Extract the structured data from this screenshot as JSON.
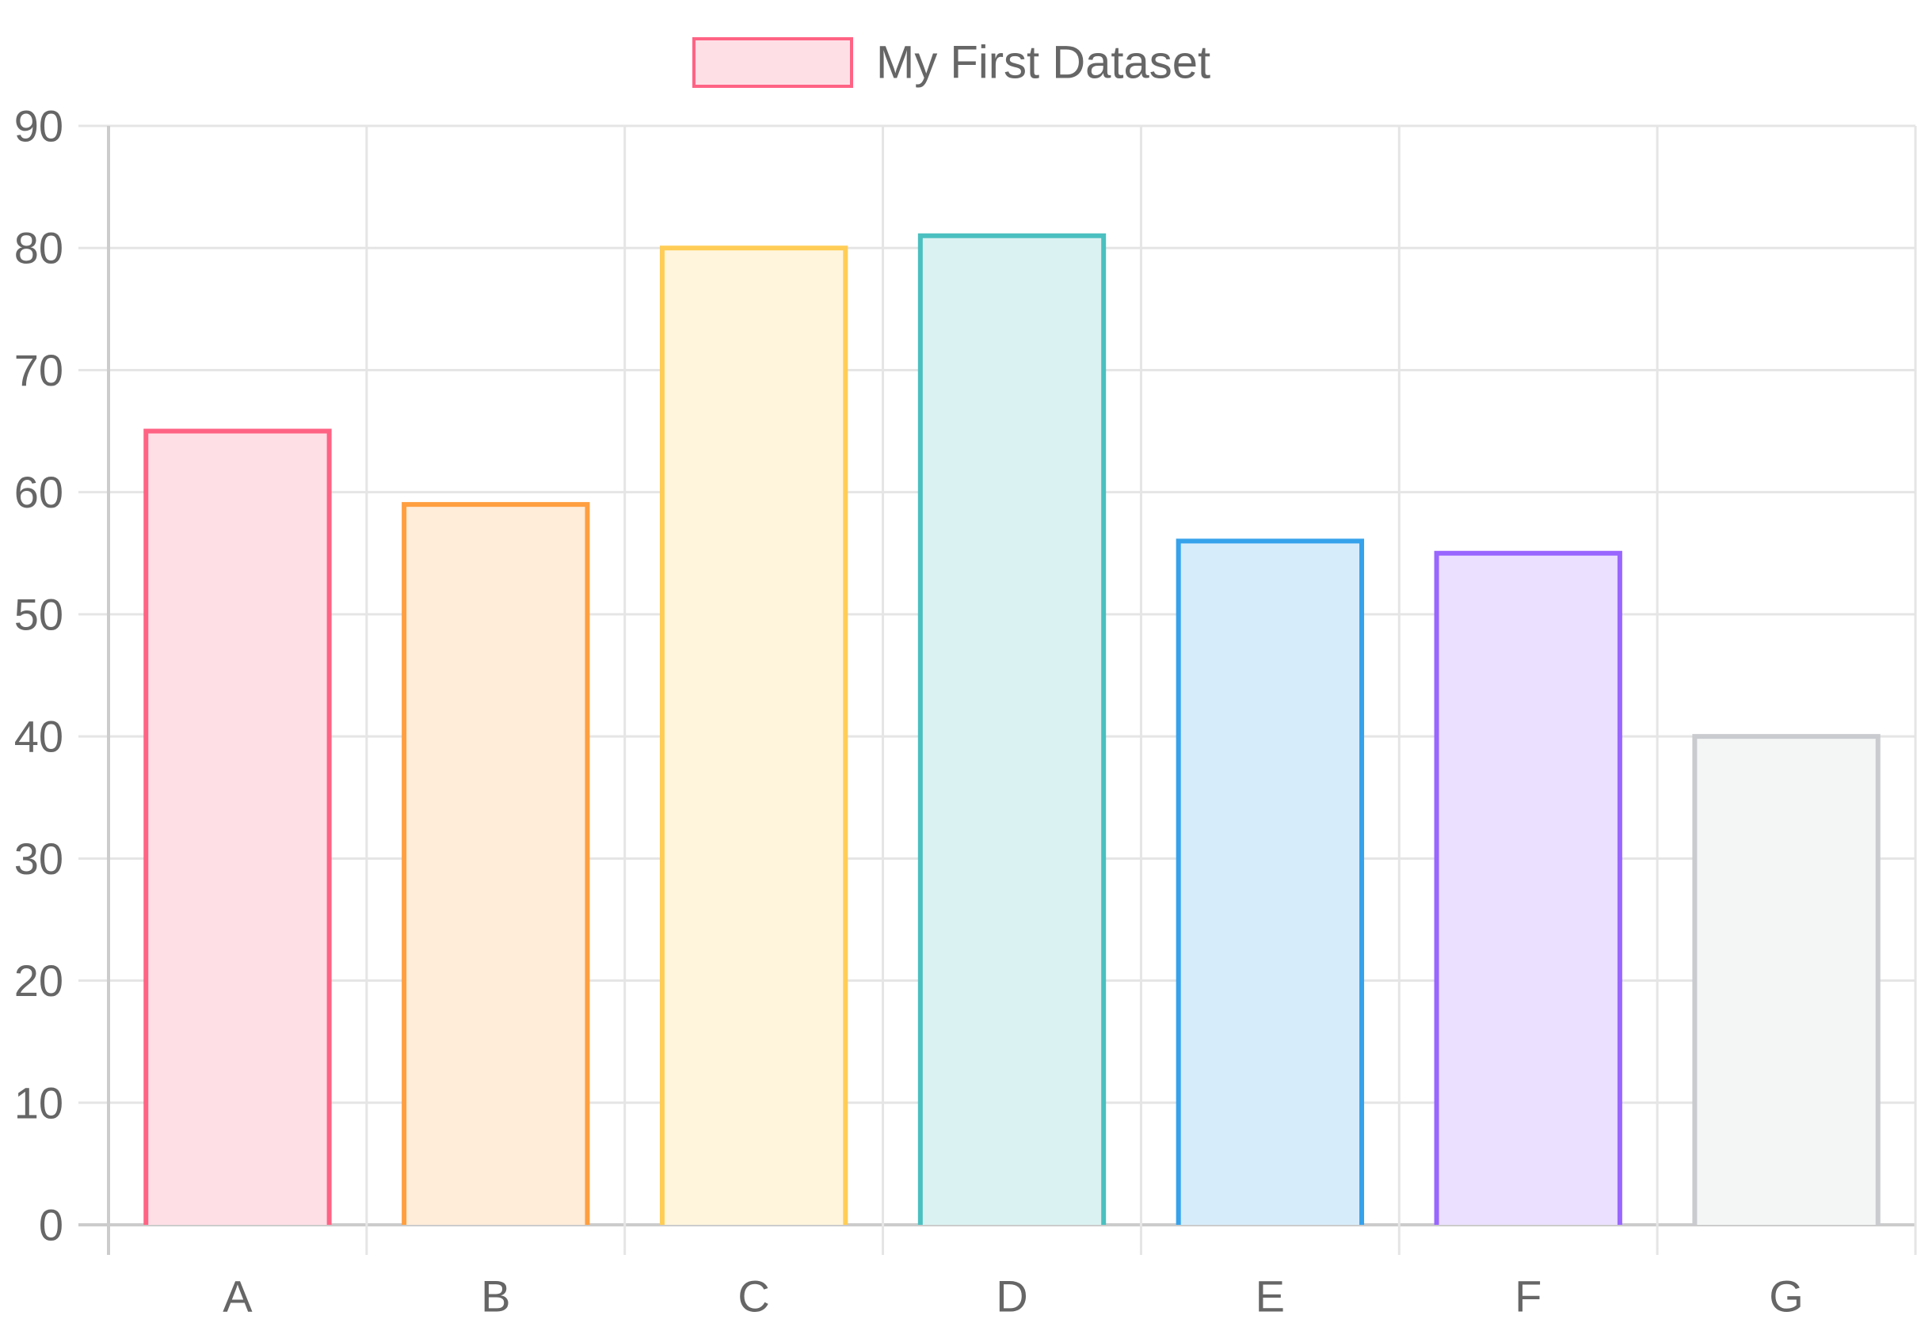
{
  "chart_data": {
    "type": "bar",
    "categories": [
      "A",
      "B",
      "C",
      "D",
      "E",
      "F",
      "G"
    ],
    "series": [
      {
        "name": "My First Dataset",
        "values": [
          65,
          59,
          80,
          81,
          56,
          55,
          40
        ]
      }
    ],
    "ylim": [
      0,
      90
    ],
    "y_ticks": [
      0,
      10,
      20,
      30,
      40,
      50,
      60,
      70,
      80,
      90
    ],
    "grid": true,
    "legend_position": "top-center",
    "bar_colors": {
      "border": [
        "#ff6384",
        "#ff9f40",
        "#ffcd56",
        "#4bc0c0",
        "#36a2eb",
        "#9966ff",
        "#c9cbcf"
      ],
      "fill": [
        "#ffdfe6",
        "#ffecd9",
        "#fff5dd",
        "#dbf2f2",
        "#d7ecfb",
        "#ebe0ff",
        "#f4f5f5"
      ]
    },
    "legend_swatch": {
      "border": "#ff6384",
      "fill": "#ffdfe6"
    },
    "text_color": "#666666",
    "grid_color": "#e5e5e5",
    "axis_color": "#cccccc"
  }
}
